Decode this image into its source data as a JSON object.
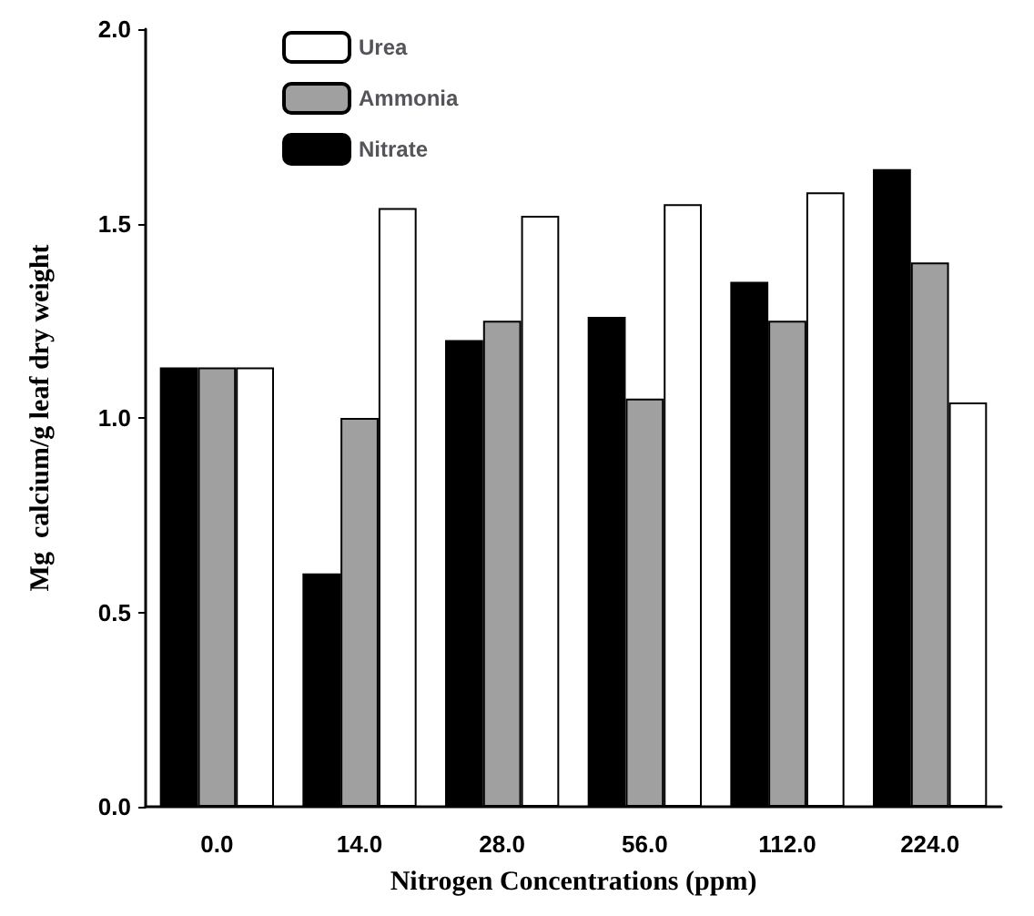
{
  "chart_data": {
    "type": "bar",
    "xlabel": "Nitrogen Concentrations (ppm)",
    "ylabel": "Mg  calcium/g leaf dry weight",
    "categories": [
      "0.0",
      "14.0",
      "28.0",
      "56.0",
      "112.0",
      "224.0"
    ],
    "series": [
      {
        "name": "Nitrate",
        "color": "#000000",
        "values": [
          1.13,
          0.6,
          1.2,
          1.26,
          1.35,
          1.64
        ]
      },
      {
        "name": "Ammonia",
        "color": "#a0a0a0",
        "values": [
          1.13,
          1.0,
          1.25,
          1.05,
          1.25,
          1.4
        ]
      },
      {
        "name": "Urea",
        "color": "#ffffff",
        "values": [
          1.13,
          1.54,
          1.52,
          1.55,
          1.58,
          1.04
        ]
      }
    ],
    "ylim": [
      0,
      2
    ],
    "yticks": [
      {
        "value": 0,
        "label": "0.0"
      },
      {
        "value": 0.5,
        "label": "0.5"
      },
      {
        "value": 1,
        "label": "1.0"
      },
      {
        "value": 1.5,
        "label": "1.5"
      },
      {
        "value": 2,
        "label": "2.0"
      }
    ],
    "grid": false,
    "legend": "top"
  }
}
